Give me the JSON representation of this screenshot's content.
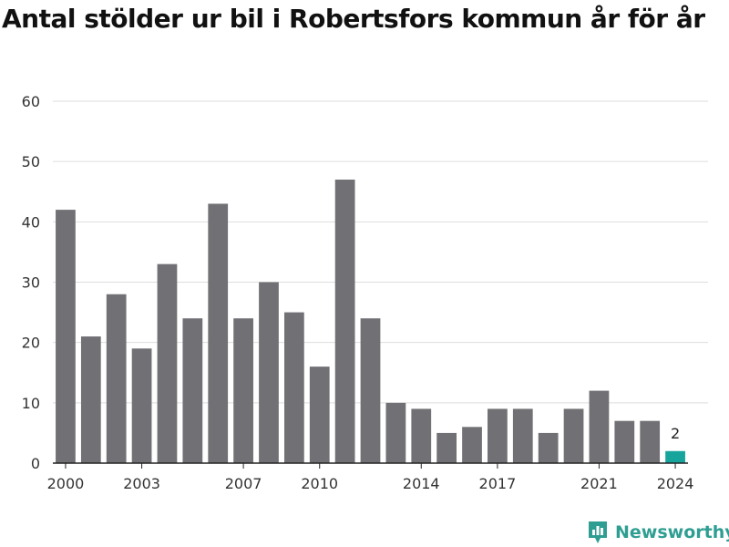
{
  "title": "Antal stölder ur bil i Robertsfors kommun år för år",
  "brand": {
    "name": "Newsworthy",
    "color": "#2f9e92"
  },
  "colors": {
    "bar": "#717074",
    "highlight": "#16a49c",
    "grid": "#dddddd",
    "axis_text": "#333333"
  },
  "chart_data": {
    "type": "bar",
    "title": "Antal stölder ur bil i Robertsfors kommun år för år",
    "xlabel": "",
    "ylabel": "",
    "categories": [
      2000,
      2001,
      2002,
      2003,
      2004,
      2005,
      2006,
      2007,
      2008,
      2009,
      2010,
      2011,
      2012,
      2013,
      2014,
      2015,
      2016,
      2017,
      2018,
      2019,
      2020,
      2021,
      2022,
      2023,
      2024
    ],
    "values": [
      42,
      21,
      28,
      19,
      33,
      24,
      43,
      24,
      30,
      25,
      16,
      47,
      24,
      10,
      9,
      5,
      6,
      9,
      9,
      5,
      9,
      12,
      7,
      7,
      2
    ],
    "ylim": [
      0,
      60
    ],
    "yticks": [
      0,
      10,
      20,
      30,
      40,
      50,
      60
    ],
    "xticks": [
      2000,
      2003,
      2007,
      2010,
      2014,
      2017,
      2021,
      2024
    ],
    "grid": true,
    "highlight_category": 2024,
    "highlight_label": "2"
  }
}
